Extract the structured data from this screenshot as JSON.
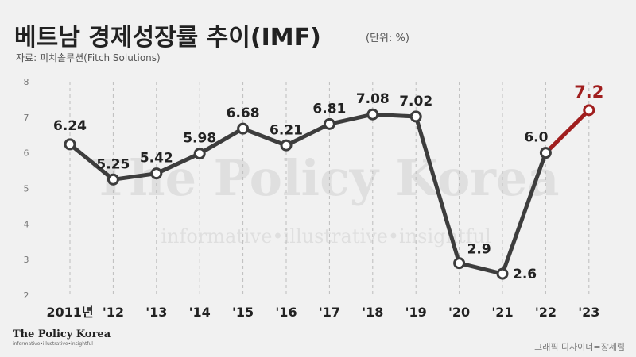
{
  "header": {
    "title": "베트남 경제성장률 추이(IMF)",
    "unit": "(단위: %)",
    "source": "자료: 피치솔루션(Fitch Solutions)"
  },
  "watermark": {
    "name": "The Policy Korea",
    "tagline": "informative•illustrative•insightful"
  },
  "footer": {
    "logo": "The Policy Korea",
    "tagline": "informative•illustrative•insightful",
    "credit": "그래픽 디자이너=장세림"
  },
  "colors": {
    "line": "#3d3d3d",
    "highlight": "#a01e1e",
    "grid": "#bdbdbd",
    "background": "#f1f1f1"
  },
  "chart_data": {
    "type": "line",
    "categories": [
      "2011년",
      "'12",
      "'13",
      "'14",
      "'15",
      "'16",
      "'17",
      "'18",
      "'19",
      "'20",
      "'21",
      "'22",
      "'23"
    ],
    "values": [
      6.24,
      5.25,
      5.42,
      5.98,
      6.68,
      6.21,
      6.81,
      7.08,
      7.02,
      2.9,
      2.6,
      6.0,
      7.2
    ],
    "value_labels": [
      "6.24",
      "5.25",
      "5.42",
      "5.98",
      "6.68",
      "6.21",
      "6.81",
      "7.08",
      "7.02",
      "2.9",
      "2.6",
      "6.0",
      "7.2"
    ],
    "highlight_last_segment": true,
    "ylim": [
      2,
      8
    ],
    "yticks": [
      2,
      3,
      4,
      5,
      6,
      7,
      8
    ],
    "grid": "vertical dashed",
    "title": "베트남 경제성장률 추이(IMF)",
    "xlabel": "",
    "ylabel": ""
  }
}
